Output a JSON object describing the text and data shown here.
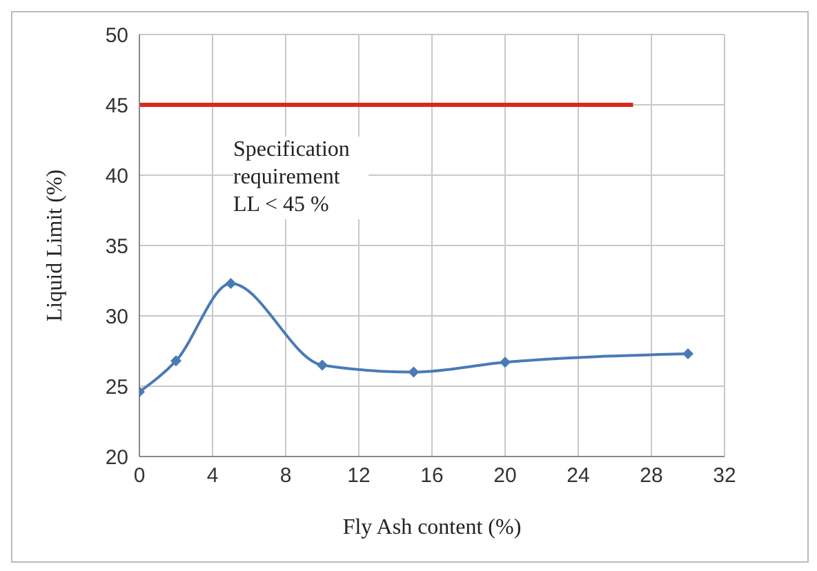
{
  "chart_data": {
    "type": "line",
    "xlabel": "Fly Ash content (%)",
    "ylabel": "Liquid Limit (%)",
    "series": [
      {
        "color": "#4a7ab5",
        "x": [
          0,
          2,
          5,
          10,
          15,
          20,
          30
        ],
        "values": [
          24.6,
          26.8,
          32.3,
          26.5,
          26.0,
          26.7,
          27.3
        ],
        "marker": "diamond"
      },
      {
        "color": "#d9261c",
        "x": [
          0,
          27
        ],
        "values": [
          45,
          45
        ],
        "marker": "none"
      }
    ],
    "annotations": [
      "Specification requirement LL < 45 %"
    ],
    "xlim": [
      0,
      32
    ],
    "xticks": [
      0,
      4,
      8,
      12,
      16,
      20,
      24,
      28,
      32
    ],
    "ylim": [
      20,
      50
    ],
    "yticks": [
      20,
      25,
      30,
      35,
      40,
      45,
      50
    ],
    "grid": true
  }
}
